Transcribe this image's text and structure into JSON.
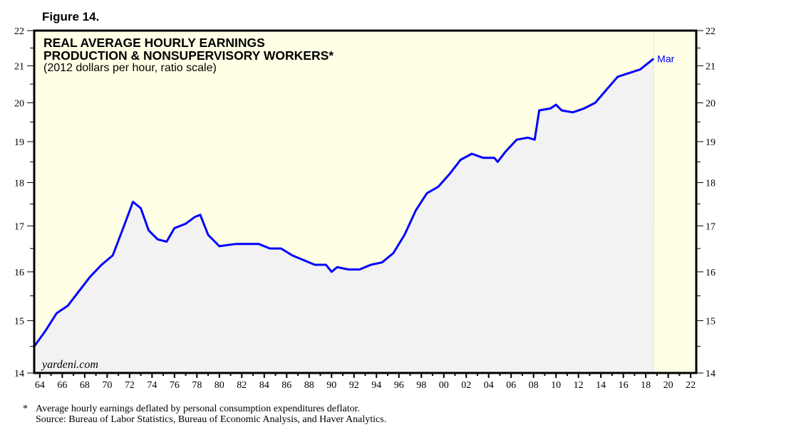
{
  "figure_label": "Figure 14.",
  "chart_data": {
    "type": "area",
    "title": [
      "REAL AVERAGE HOURLY EARNINGS",
      "PRODUCTION & NONSUPERVISORY WORKERS*"
    ],
    "subtitle": "(2012 dollars per hour, ratio scale)",
    "y_scale": "log",
    "ylim": [
      14,
      22
    ],
    "xlim": [
      1964,
      2023
    ],
    "y_ticks": [
      14,
      15,
      16,
      17,
      18,
      19,
      20,
      21,
      22
    ],
    "x_tick_labels": [
      "64",
      "66",
      "68",
      "70",
      "72",
      "74",
      "76",
      "78",
      "80",
      "82",
      "84",
      "86",
      "88",
      "90",
      "92",
      "94",
      "96",
      "98",
      "00",
      "02",
      "04",
      "06",
      "08",
      "10",
      "12",
      "14",
      "16",
      "18",
      "20",
      "22"
    ],
    "end_label": "Mar",
    "watermark": "yardeni.com",
    "line_color": "#0000ff",
    "fill_color": "#f2f2f2",
    "background_color": "#ffffe6",
    "series": [
      {
        "x": [
          1964.0,
          1965,
          1966,
          1967,
          1968,
          1969,
          1970,
          1971,
          1972,
          1972.8,
          1973.5,
          1974.2,
          1975,
          1975.8,
          1976.5,
          1977.5,
          1978.3,
          1978.8,
          1979.5,
          1980.5,
          1982,
          1983,
          1984,
          1985,
          1986,
          1987,
          1988,
          1989,
          1990,
          1990.5,
          1991,
          1992,
          1993,
          1994,
          1995,
          1996,
          1997,
          1998,
          1999,
          2000,
          2001,
          2002,
          2003,
          2004,
          2005,
          2005.3,
          2006,
          2007,
          2008,
          2008.6,
          2009,
          2010,
          2010.5,
          2011,
          2012,
          2013,
          2014,
          2015,
          2016,
          2017,
          2018,
          2019.2
        ],
        "y": [
          14.5,
          14.8,
          15.15,
          15.3,
          15.6,
          15.9,
          16.15,
          16.35,
          17.0,
          17.55,
          17.4,
          16.9,
          16.7,
          16.65,
          16.95,
          17.05,
          17.2,
          17.25,
          16.8,
          16.55,
          16.6,
          16.6,
          16.6,
          16.5,
          16.5,
          16.35,
          16.25,
          16.15,
          16.15,
          16.0,
          16.1,
          16.05,
          16.05,
          16.15,
          16.2,
          16.4,
          16.8,
          17.35,
          17.75,
          17.9,
          18.2,
          18.55,
          18.7,
          18.6,
          18.6,
          18.5,
          18.75,
          19.05,
          19.1,
          19.05,
          19.8,
          19.85,
          19.95,
          19.8,
          19.75,
          19.85,
          20.0,
          20.35,
          20.7,
          20.8,
          20.9,
          21.2
        ]
      }
    ]
  },
  "footnotes": {
    "note": "Average hourly earnings deflated by personal consumption expenditures deflator.",
    "note_marker": "*",
    "source": "Source: Bureau of Labor Statistics, Bureau of Economic Analysis, and Haver Analytics."
  }
}
